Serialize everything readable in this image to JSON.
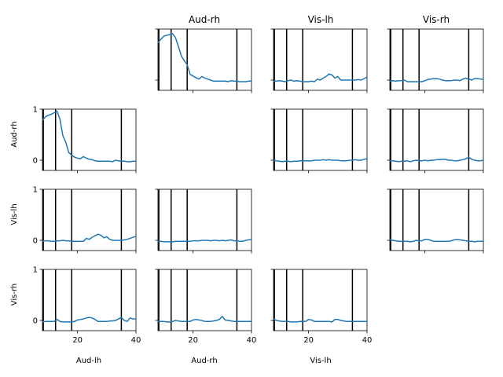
{
  "figure": {
    "col_titles": [
      "Aud-rh",
      "Vis-lh",
      "Vis-rh"
    ],
    "xlabels": [
      "Aud-lh",
      "Aud-rh",
      "Vis-lh"
    ],
    "ylabels": [
      "Aud-rh",
      "Vis-lh",
      "Vis-rh"
    ]
  },
  "chart_data": {
    "type": "line",
    "grid": false,
    "xlim": [
      8,
      40
    ],
    "ylim": [
      -0.2,
      1
    ],
    "xticks": [
      "20",
      "40"
    ],
    "yticks": [
      "0",
      "1"
    ],
    "event_lines_x": [
      8.3,
      12.5,
      18.0,
      35.0
    ],
    "panels": [
      {
        "row": 0,
        "col": 1,
        "x": [
          8,
          9,
          10,
          11,
          12,
          13,
          14,
          15,
          16,
          17,
          18,
          19,
          20,
          21,
          22,
          23,
          24,
          25,
          26,
          27,
          28,
          29,
          30,
          31,
          32,
          33,
          34,
          35,
          36,
          37,
          38,
          39,
          40
        ],
        "y": [
          0.73,
          0.8,
          0.86,
          0.88,
          0.89,
          0.91,
          0.83,
          0.66,
          0.47,
          0.38,
          0.3,
          0.11,
          0.08,
          0.05,
          0.02,
          0.07,
          0.04,
          0.02,
          0.0,
          -0.02,
          -0.02,
          -0.02,
          -0.02,
          -0.02,
          -0.03,
          -0.01,
          -0.02,
          -0.02,
          -0.03,
          -0.03,
          -0.03,
          -0.02,
          -0.02
        ]
      },
      {
        "row": 0,
        "col": 2,
        "x": [
          8,
          9,
          10,
          11,
          12,
          13,
          14,
          15,
          16,
          17,
          18,
          19,
          20,
          21,
          22,
          23,
          24,
          25,
          26,
          27,
          28,
          29,
          30,
          31,
          32,
          33,
          34,
          35,
          36,
          37,
          38,
          39,
          40
        ],
        "y": [
          -0.02,
          -0.02,
          -0.01,
          -0.02,
          -0.03,
          -0.01,
          0.0,
          -0.02,
          -0.01,
          -0.02,
          -0.03,
          -0.03,
          -0.03,
          -0.02,
          -0.03,
          0.02,
          0.0,
          0.04,
          0.07,
          0.12,
          0.1,
          0.04,
          0.07,
          0.0,
          0.0,
          0.0,
          0.0,
          0.0,
          0.0,
          0.01,
          0.0,
          0.03,
          0.06
        ]
      },
      {
        "row": 0,
        "col": 3,
        "x": [
          8,
          9,
          10,
          11,
          12,
          13,
          14,
          15,
          16,
          17,
          18,
          19,
          20,
          21,
          22,
          23,
          24,
          25,
          26,
          27,
          28,
          29,
          30,
          31,
          32,
          33,
          34,
          35,
          36,
          37,
          38,
          39,
          40
        ],
        "y": [
          -0.02,
          -0.01,
          -0.02,
          -0.01,
          -0.01,
          0.0,
          -0.03,
          -0.03,
          -0.03,
          -0.03,
          -0.03,
          -0.03,
          -0.01,
          0.01,
          0.02,
          0.03,
          0.03,
          0.02,
          0.0,
          -0.01,
          -0.01,
          -0.01,
          0.0,
          0.0,
          -0.01,
          0.02,
          0.04,
          0.02,
          0.0,
          0.03,
          0.03,
          0.02,
          0.02
        ]
      },
      {
        "row": 1,
        "col": 0,
        "x": [
          8,
          9,
          10,
          11,
          12,
          13,
          14,
          15,
          16,
          17,
          18,
          19,
          20,
          21,
          22,
          23,
          24,
          25,
          26,
          27,
          28,
          29,
          30,
          31,
          32,
          33,
          34,
          35,
          36,
          37,
          38,
          39,
          40
        ],
        "y": [
          0.78,
          0.85,
          0.88,
          0.9,
          0.93,
          0.96,
          0.8,
          0.48,
          0.35,
          0.15,
          0.1,
          0.06,
          0.04,
          0.03,
          0.07,
          0.04,
          0.02,
          0.01,
          -0.01,
          -0.02,
          -0.02,
          -0.02,
          -0.02,
          -0.02,
          -0.03,
          0.0,
          -0.01,
          -0.02,
          -0.02,
          -0.03,
          -0.03,
          -0.02,
          -0.02
        ]
      },
      {
        "row": 1,
        "col": 2,
        "x": [
          8,
          9,
          10,
          11,
          12,
          13,
          14,
          15,
          16,
          17,
          18,
          19,
          20,
          21,
          22,
          23,
          24,
          25,
          26,
          27,
          28,
          29,
          30,
          31,
          32,
          33,
          34,
          35,
          36,
          37,
          38,
          39,
          40
        ],
        "y": [
          0.0,
          -0.01,
          -0.02,
          -0.03,
          -0.02,
          -0.02,
          -0.03,
          -0.02,
          -0.02,
          -0.01,
          -0.01,
          -0.01,
          -0.01,
          -0.01,
          0.0,
          0.0,
          0.0,
          0.01,
          0.0,
          0.01,
          0.0,
          0.0,
          0.0,
          -0.01,
          -0.01,
          -0.01,
          0.0,
          0.0,
          0.01,
          0.0,
          0.0,
          0.02,
          0.03
        ]
      },
      {
        "row": 1,
        "col": 3,
        "x": [
          8,
          9,
          10,
          11,
          12,
          13,
          14,
          15,
          16,
          17,
          18,
          19,
          20,
          21,
          22,
          23,
          24,
          25,
          26,
          27,
          28,
          29,
          30,
          31,
          32,
          33,
          34,
          35,
          36,
          37,
          38,
          39,
          40
        ],
        "y": [
          -0.01,
          -0.01,
          -0.02,
          -0.03,
          -0.02,
          -0.02,
          -0.01,
          -0.03,
          -0.01,
          0.0,
          -0.01,
          -0.01,
          0.0,
          -0.01,
          0.0,
          0.0,
          0.01,
          0.01,
          0.02,
          0.02,
          0.0,
          0.0,
          -0.01,
          -0.01,
          0.0,
          0.01,
          0.03,
          0.06,
          0.02,
          0.0,
          -0.01,
          -0.01,
          0.0
        ]
      },
      {
        "row": 2,
        "col": 0,
        "x": [
          8,
          9,
          10,
          11,
          12,
          13,
          14,
          15,
          16,
          17,
          18,
          19,
          20,
          21,
          22,
          23,
          24,
          25,
          26,
          27,
          28,
          29,
          30,
          31,
          32,
          33,
          34,
          35,
          36,
          37,
          38,
          39,
          40
        ],
        "y": [
          -0.02,
          -0.01,
          -0.01,
          -0.02,
          -0.02,
          -0.01,
          -0.01,
          0.0,
          -0.01,
          -0.01,
          -0.02,
          -0.02,
          -0.02,
          -0.02,
          -0.02,
          0.04,
          0.02,
          0.06,
          0.09,
          0.12,
          0.1,
          0.05,
          0.07,
          0.02,
          0.0,
          0.0,
          0.0,
          0.0,
          0.01,
          0.02,
          0.04,
          0.06,
          0.08
        ]
      },
      {
        "row": 2,
        "col": 1,
        "x": [
          8,
          9,
          10,
          11,
          12,
          13,
          14,
          15,
          16,
          17,
          18,
          19,
          20,
          21,
          22,
          23,
          24,
          25,
          26,
          27,
          28,
          29,
          30,
          31,
          32,
          33,
          34,
          35,
          36,
          37,
          38,
          39,
          40
        ],
        "y": [
          -0.02,
          -0.02,
          -0.03,
          -0.03,
          -0.03,
          -0.03,
          -0.02,
          -0.02,
          -0.02,
          -0.02,
          -0.02,
          -0.02,
          -0.01,
          -0.01,
          -0.01,
          0.0,
          0.0,
          0.0,
          -0.01,
          0.0,
          0.0,
          -0.01,
          0.0,
          -0.01,
          0.0,
          0.01,
          -0.01,
          -0.01,
          -0.02,
          -0.02,
          0.0,
          0.01,
          0.02
        ]
      },
      {
        "row": 2,
        "col": 3,
        "x": [
          8,
          9,
          10,
          11,
          12,
          13,
          14,
          15,
          16,
          17,
          18,
          19,
          20,
          21,
          22,
          23,
          24,
          25,
          26,
          27,
          28,
          29,
          30,
          31,
          32,
          33,
          34,
          35,
          36,
          37,
          38,
          39,
          40
        ],
        "y": [
          0.02,
          0.0,
          -0.01,
          -0.02,
          -0.02,
          -0.02,
          -0.02,
          -0.03,
          -0.02,
          0.0,
          -0.01,
          -0.01,
          0.02,
          0.02,
          0.0,
          -0.02,
          -0.02,
          -0.02,
          -0.02,
          -0.02,
          -0.02,
          -0.01,
          0.01,
          0.02,
          0.01,
          0.0,
          -0.01,
          -0.02,
          -0.02,
          -0.03,
          -0.02,
          -0.02,
          -0.02
        ]
      },
      {
        "row": 3,
        "col": 0,
        "x": [
          8,
          9,
          10,
          11,
          12,
          13,
          14,
          15,
          16,
          17,
          18,
          19,
          20,
          21,
          22,
          23,
          24,
          25,
          26,
          27,
          28,
          29,
          30,
          31,
          32,
          33,
          34,
          35,
          36,
          37,
          38,
          39,
          40
        ],
        "y": [
          -0.03,
          -0.02,
          -0.02,
          -0.02,
          -0.02,
          0.02,
          -0.02,
          -0.03,
          -0.03,
          -0.03,
          -0.03,
          -0.02,
          0.01,
          0.02,
          0.03,
          0.05,
          0.06,
          0.05,
          0.02,
          -0.02,
          -0.02,
          -0.02,
          -0.02,
          -0.01,
          -0.01,
          0.0,
          0.03,
          0.06,
          0.0,
          -0.02,
          0.05,
          0.03,
          0.03
        ]
      },
      {
        "row": 3,
        "col": 1,
        "x": [
          8,
          9,
          10,
          11,
          12,
          13,
          14,
          15,
          16,
          17,
          18,
          19,
          20,
          21,
          22,
          23,
          24,
          25,
          26,
          27,
          28,
          29,
          30,
          31,
          32,
          33,
          34,
          35,
          36,
          37,
          38,
          39,
          40
        ],
        "y": [
          -0.02,
          -0.02,
          -0.02,
          -0.03,
          -0.03,
          -0.02,
          0.0,
          -0.01,
          -0.02,
          -0.02,
          -0.02,
          -0.02,
          0.01,
          0.02,
          0.01,
          0.0,
          -0.02,
          -0.02,
          -0.02,
          -0.01,
          0.0,
          0.02,
          0.08,
          0.01,
          0.0,
          -0.01,
          -0.02,
          -0.02,
          -0.02,
          -0.02,
          -0.02,
          -0.02,
          -0.02
        ]
      },
      {
        "row": 3,
        "col": 2,
        "x": [
          8,
          9,
          10,
          11,
          12,
          13,
          14,
          15,
          16,
          17,
          18,
          19,
          20,
          21,
          22,
          23,
          24,
          25,
          26,
          27,
          28,
          29,
          30,
          31,
          32,
          33,
          34,
          35,
          36,
          37,
          38,
          39,
          40
        ],
        "y": [
          0.03,
          0.0,
          -0.01,
          -0.02,
          -0.02,
          -0.02,
          -0.03,
          -0.03,
          -0.03,
          -0.02,
          -0.02,
          -0.02,
          0.02,
          0.01,
          -0.02,
          -0.02,
          -0.02,
          -0.02,
          -0.02,
          -0.02,
          -0.03,
          0.02,
          0.02,
          0.0,
          -0.01,
          -0.02,
          -0.02,
          -0.02,
          -0.02,
          -0.02,
          -0.02,
          -0.02,
          -0.02
        ]
      }
    ]
  }
}
